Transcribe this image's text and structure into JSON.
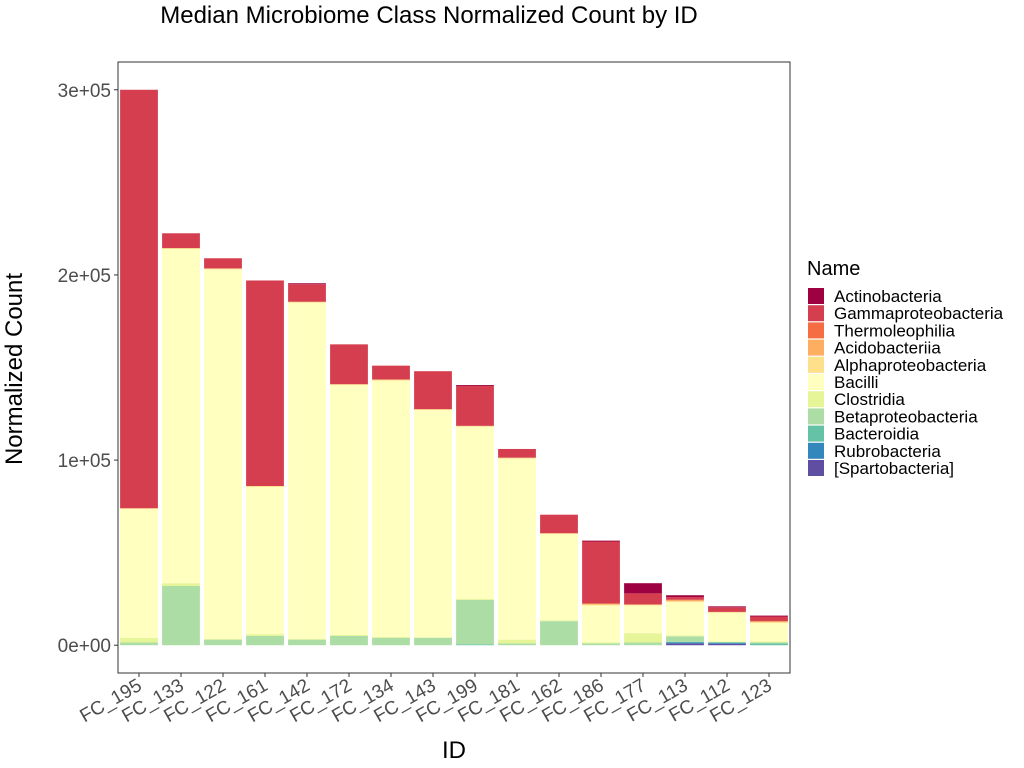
{
  "chart_data": {
    "type": "bar",
    "stacked": true,
    "title": "Median Microbiome Class Normalized Count by ID",
    "xlabel": "ID",
    "ylabel": "Normalized Count",
    "ylim": [
      -15000,
      315000
    ],
    "yticks": [
      0,
      100000,
      200000,
      300000
    ],
    "ytick_labels": [
      "0e+00",
      "1e+05",
      "2e+05",
      "3e+05"
    ],
    "grid": false,
    "legend_position": "right",
    "legend_title": "Name",
    "categories": [
      "FC_195",
      "FC_133",
      "FC_122",
      "FC_161",
      "FC_142",
      "FC_172",
      "FC_134",
      "FC_143",
      "FC_199",
      "FC_181",
      "FC_162",
      "FC_186",
      "FC_177",
      "FC_113",
      "FC_112",
      "FC_123"
    ],
    "series": [
      {
        "name": "[Spartobacteria]",
        "color": "#5E4FA2",
        "values": [
          0,
          0,
          0,
          0,
          0,
          0,
          0,
          0,
          0,
          0,
          0,
          0,
          0,
          1000,
          800,
          0
        ]
      },
      {
        "name": "Rubrobacteria",
        "color": "#3288BD",
        "values": [
          0,
          0,
          0,
          0,
          0,
          0,
          0,
          0,
          0,
          0,
          0,
          0,
          0,
          500,
          400,
          0
        ]
      },
      {
        "name": "Bacteroidia",
        "color": "#66C2A5",
        "values": [
          0,
          0,
          0,
          0,
          0,
          0,
          0,
          0,
          500,
          0,
          0,
          0,
          0,
          300,
          300,
          1000
        ]
      },
      {
        "name": "Betaproteobacteria",
        "color": "#ABDDA4",
        "values": [
          1500,
          32000,
          3000,
          5000,
          3000,
          5000,
          4000,
          4000,
          24000,
          1000,
          13000,
          1000,
          1500,
          3000,
          300,
          500
        ]
      },
      {
        "name": "Clostridia",
        "color": "#E6F598",
        "values": [
          2500,
          1500,
          500,
          1000,
          500,
          500,
          500,
          300,
          500,
          2000,
          500,
          500,
          5000,
          500,
          300,
          500
        ]
      },
      {
        "name": "Bacilli",
        "color": "#FFFFBF",
        "values": [
          69500,
          180500,
          199500,
          79500,
          181500,
          135000,
          138500,
          122700,
          93000,
          97800,
          46500,
          20000,
          15000,
          18000,
          15400,
          10000
        ]
      },
      {
        "name": "Alphaproteobacteria",
        "color": "#FEE08B",
        "values": [
          500,
          500,
          500,
          500,
          500,
          500,
          500,
          500,
          500,
          500,
          500,
          500,
          500,
          500,
          500,
          500
        ]
      },
      {
        "name": "Acidobacteriia",
        "color": "#FDAE61",
        "values": [
          0,
          0,
          0,
          0,
          0,
          0,
          0,
          0,
          0,
          0,
          0,
          500,
          0,
          500,
          0,
          500
        ]
      },
      {
        "name": "Thermoleophilia",
        "color": "#F46D43",
        "values": [
          0,
          0,
          0,
          0,
          0,
          0,
          0,
          0,
          0,
          0,
          0,
          0,
          0,
          300,
          0,
          0
        ]
      },
      {
        "name": "Gammaproteobacteria",
        "color": "#D53E4F",
        "values": [
          226000,
          8000,
          5500,
          111000,
          9500,
          21500,
          7500,
          20500,
          21500,
          4700,
          10000,
          33500,
          6000,
          1400,
          2500,
          2500
        ]
      },
      {
        "name": "Actinobacteria",
        "color": "#9E0142",
        "values": [
          0,
          0,
          0,
          0,
          500,
          0,
          0,
          0,
          500,
          0,
          0,
          500,
          5500,
          1000,
          500,
          500
        ]
      }
    ]
  }
}
